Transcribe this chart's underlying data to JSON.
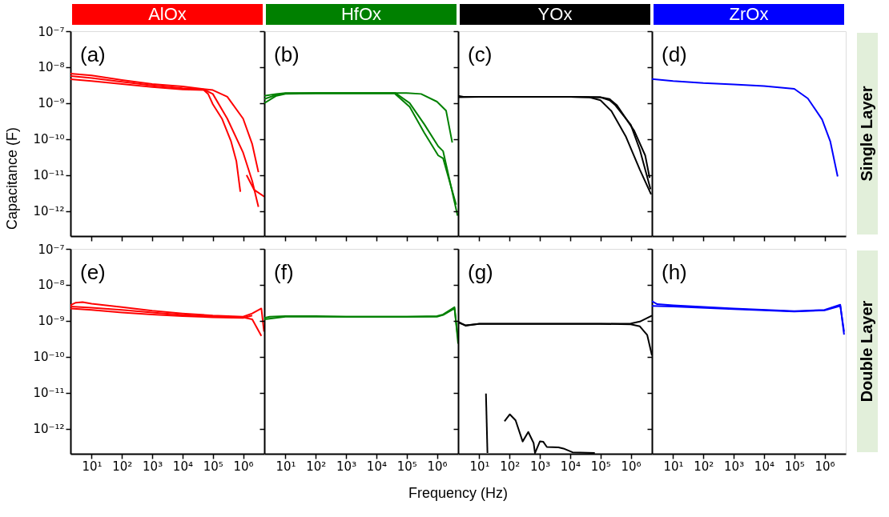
{
  "chart_data": [
    {
      "type": "line",
      "title": "AlOx",
      "ylabel": "Capacitance (F)",
      "annotations": [
        "(a)"
      ],
      "log": "xy",
      "tick_labels": "y",
      "grid": false,
      "xlim": [
        2,
        5000000
      ],
      "ylim": [
        2e-13,
        1e-07
      ],
      "xticks": [
        {
          "value": 10,
          "label": null
        },
        {
          "value": 100,
          "label": null
        },
        {
          "value": 1000,
          "label": null
        },
        {
          "value": 10000,
          "label": null
        },
        {
          "value": 100000,
          "label": null
        },
        {
          "value": 1000000,
          "label": null
        }
      ],
      "yticks": [
        {
          "value": 1e-07,
          "label": "10⁻⁷"
        },
        {
          "value": 1e-08,
          "label": "10⁻⁸"
        },
        {
          "value": 1e-09,
          "label": "10⁻⁹"
        },
        {
          "value": 1e-10,
          "label": "10⁻¹⁰"
        },
        {
          "value": 1e-11,
          "label": "10⁻¹¹"
        },
        {
          "value": 1e-12,
          "label": "10⁻¹²"
        }
      ],
      "series": [
        {
          "color": "#ff0000",
          "x": [
            2,
            10,
            100,
            1000,
            10000,
            100000,
            300000,
            1000000,
            2000000,
            3200000
          ],
          "values": [
            6.6e-09,
            5.9e-09,
            4.4e-09,
            3.4e-09,
            2.9e-09,
            2.3e-09,
            1.5e-09,
            3.7e-10,
            7.2e-11,
            1.2e-11
          ]
        },
        {
          "color": "#ff0000",
          "x": [
            2,
            10,
            100,
            1000,
            10000,
            50000,
            100000,
            300000,
            1000000,
            2000000,
            3200000
          ],
          "values": [
            5.7e-09,
            5e-09,
            3.9e-09,
            3.1e-09,
            2.6e-09,
            2.4e-09,
            1.8e-09,
            3.7e-10,
            4.2e-11,
            6.8e-12,
            1.3e-12
          ]
        },
        {
          "color": "#ff0000",
          "x": [
            2,
            10,
            100,
            1000,
            10000,
            50000,
            70000,
            100000,
            200000,
            400000,
            600000,
            810000
          ],
          "values": [
            4.6e-09,
            4.1e-09,
            3.4e-09,
            2.8e-09,
            2.4e-09,
            2.3e-09,
            1.8e-09,
            9.3e-10,
            3.7e-10,
            8.6e-11,
            2.4e-11,
            3.4e-12
          ]
        },
        {
          "color": "#ff0000",
          "x": [
            1300000,
            2300000,
            5000000
          ],
          "values": [
            1e-11,
            3.9e-12,
            2.5e-12
          ]
        }
      ]
    },
    {
      "type": "line",
      "title": "HfOx",
      "annotations": [
        "(b)"
      ],
      "log": "xy",
      "tick_labels": false,
      "grid": false,
      "xlim": [
        2,
        5000000
      ],
      "ylim": [
        2e-13,
        1e-07
      ],
      "xticks": [
        {
          "value": 10,
          "label": null
        },
        {
          "value": 100,
          "label": null
        },
        {
          "value": 1000,
          "label": null
        },
        {
          "value": 10000,
          "label": null
        },
        {
          "value": 100000,
          "label": null
        },
        {
          "value": 1000000,
          "label": null
        }
      ],
      "yticks": [
        {
          "value": 1e-07,
          "label": null
        },
        {
          "value": 1e-08,
          "label": null
        },
        {
          "value": 1e-09,
          "label": null
        },
        {
          "value": 1e-10,
          "label": null
        },
        {
          "value": 1e-11,
          "label": null
        },
        {
          "value": 1e-12,
          "label": null
        }
      ],
      "series": [
        {
          "color": "#008000",
          "x": [
            2,
            5,
            10,
            100,
            1000,
            10000,
            100000,
            300000,
            1000000,
            2000000,
            3200000
          ],
          "values": [
            1.6e-09,
            1.8e-09,
            1.9e-09,
            1.9e-09,
            1.9e-09,
            1.9e-09,
            1.9e-09,
            1.8e-09,
            1.1e-09,
            6.2e-10,
            8e-11
          ]
        },
        {
          "color": "#008000",
          "x": [
            2,
            5,
            10,
            100,
            1000,
            10000,
            43000,
            126000,
            380000,
            1100000,
            1600000,
            4800000
          ],
          "values": [
            1.3e-09,
            1.7e-09,
            1.85e-09,
            1.9e-09,
            1.9e-09,
            1.9e-09,
            1.9e-09,
            1e-09,
            2.6e-10,
            6.3e-11,
            4.6e-11,
            7.4e-13
          ]
        },
        {
          "color": "#008000",
          "x": [
            2,
            5,
            10,
            100,
            1000,
            10000,
            40000,
            126000,
            380000,
            1100000,
            1600000,
            4300000
          ],
          "values": [
            1e-09,
            1.6e-09,
            1.8e-09,
            1.85e-09,
            1.85e-09,
            1.85e-09,
            1.85e-09,
            7.9e-10,
            1.5e-10,
            3.5e-11,
            2.9e-11,
            1.5e-12
          ]
        }
      ]
    },
    {
      "type": "line",
      "title": "YOx",
      "annotations": [
        "(c)"
      ],
      "log": "xy",
      "tick_labels": false,
      "grid": false,
      "xlim": [
        2,
        5000000
      ],
      "ylim": [
        2e-13,
        1e-07
      ],
      "xticks": [
        {
          "value": 10,
          "label": null
        },
        {
          "value": 100,
          "label": null
        },
        {
          "value": 1000,
          "label": null
        },
        {
          "value": 10000,
          "label": null
        },
        {
          "value": 100000,
          "label": null
        },
        {
          "value": 1000000,
          "label": null
        }
      ],
      "yticks": [
        {
          "value": 1e-07,
          "label": null
        },
        {
          "value": 1e-08,
          "label": null
        },
        {
          "value": 1e-09,
          "label": null
        },
        {
          "value": 1e-10,
          "label": null
        },
        {
          "value": 1e-11,
          "label": null
        },
        {
          "value": 1e-12,
          "label": null
        }
      ],
      "series": [
        {
          "color": "#000000",
          "x": [
            2,
            3,
            10,
            100,
            1000,
            10000,
            43000,
            100000,
            230000,
            680000,
            2000000,
            4700000
          ],
          "values": [
            1.6e-09,
            1.5e-09,
            1.5e-09,
            1.5e-09,
            1.5e-09,
            1.5e-09,
            1.45e-09,
            1.2e-09,
            6e-10,
            1.2e-10,
            1.4e-11,
            2.9e-12
          ]
        },
        {
          "color": "#000000",
          "x": [
            2,
            10,
            100,
            1000,
            10000,
            100000,
            200000,
            350000,
            1300000,
            3000000,
            4200000
          ],
          "values": [
            1.5e-09,
            1.5e-09,
            1.5e-09,
            1.5e-09,
            1.5e-09,
            1.45e-09,
            1.3e-09,
            8.7e-10,
            1.7e-10,
            3.5e-11,
            8.3e-12
          ]
        },
        {
          "color": "#000000",
          "x": [
            2,
            10,
            100,
            1000,
            10000,
            100000,
            200000,
            300000,
            1000000,
            2000000,
            4500000
          ],
          "values": [
            1.45e-09,
            1.5e-09,
            1.5e-09,
            1.5e-09,
            1.5e-09,
            1.45e-09,
            1.2e-09,
            9e-10,
            2.5e-10,
            5e-11,
            4e-12
          ]
        }
      ]
    },
    {
      "type": "line",
      "title": "ZrOx",
      "annotations": [
        "(d)",
        "Single Layer"
      ],
      "log": "xy",
      "tick_labels": false,
      "grid": false,
      "xlim": [
        2,
        5000000
      ],
      "ylim": [
        2e-13,
        1e-07
      ],
      "xticks": [
        {
          "value": 10,
          "label": null
        },
        {
          "value": 100,
          "label": null
        },
        {
          "value": 1000,
          "label": null
        },
        {
          "value": 10000,
          "label": null
        },
        {
          "value": 100000,
          "label": null
        },
        {
          "value": 1000000,
          "label": null
        }
      ],
      "yticks": [
        {
          "value": 1e-07,
          "label": null
        },
        {
          "value": 1e-08,
          "label": null
        },
        {
          "value": 1e-09,
          "label": null
        },
        {
          "value": 1e-10,
          "label": null
        },
        {
          "value": 1e-11,
          "label": null
        },
        {
          "value": 1e-12,
          "label": null
        }
      ],
      "series": [
        {
          "color": "#0000ff",
          "x": [
            2,
            10,
            100,
            1000,
            10000,
            100000,
            280000,
            830000,
            1550000,
            2700000
          ],
          "values": [
            4.7e-09,
            4.1e-09,
            3.6e-09,
            3.3e-09,
            3e-09,
            2.5e-09,
            1.35e-09,
            3.5e-10,
            8.5e-11,
            9.1e-12
          ]
        }
      ]
    },
    {
      "type": "line",
      "annotations": [
        "(e)"
      ],
      "log": "xy",
      "grid": false,
      "xlim": [
        2,
        5000000
      ],
      "ylim": [
        2e-13,
        1e-07
      ],
      "xticks": [
        {
          "value": 10,
          "label": "10¹"
        },
        {
          "value": 100,
          "label": "10²"
        },
        {
          "value": 1000,
          "label": "10³"
        },
        {
          "value": 10000,
          "label": "10⁴"
        },
        {
          "value": 100000,
          "label": "10⁵"
        },
        {
          "value": 1000000,
          "label": "10⁶"
        }
      ],
      "yticks": [
        {
          "value": 1e-07,
          "label": "10⁻⁷"
        },
        {
          "value": 1e-08,
          "label": "10⁻⁸"
        },
        {
          "value": 1e-09,
          "label": "10⁻⁹"
        },
        {
          "value": 1e-10,
          "label": "10⁻¹⁰"
        },
        {
          "value": 1e-11,
          "label": "10⁻¹¹"
        },
        {
          "value": 1e-12,
          "label": "10⁻¹²"
        }
      ],
      "series": [
        {
          "color": "#ff0000",
          "x": [
            2,
            3,
            5,
            10,
            100,
            1000,
            10000,
            100000,
            1000000,
            2000000,
            4000000,
            4900000
          ],
          "values": [
            2.7e-09,
            3.2e-09,
            3.3e-09,
            3e-09,
            2.4e-09,
            1.9e-09,
            1.6e-09,
            1.4e-09,
            1.3e-09,
            1.6e-09,
            2.2e-09,
            5e-10
          ]
        },
        {
          "color": "#ff0000",
          "x": [
            2,
            10,
            100,
            1000,
            10000,
            100000,
            1000000,
            2000000,
            4000000
          ],
          "values": [
            2.5e-09,
            2.3e-09,
            2e-09,
            1.7e-09,
            1.45e-09,
            1.3e-09,
            1.25e-09,
            1.1e-09,
            3.8e-10
          ]
        },
        {
          "color": "#ff0000",
          "x": [
            2,
            10,
            100,
            1000,
            10000,
            100000,
            1000000,
            2000000
          ],
          "values": [
            2.2e-09,
            2e-09,
            1.7e-09,
            1.5e-09,
            1.35e-09,
            1.25e-09,
            1.2e-09,
            1.4e-09
          ]
        }
      ]
    },
    {
      "type": "line",
      "xlabel": "Frequency (Hz)",
      "annotations": [
        "(f)"
      ],
      "log": "xy",
      "tick_labels": "x",
      "grid": false,
      "xlim": [
        2,
        5000000
      ],
      "ylim": [
        2e-13,
        1e-07
      ],
      "xticks": [
        {
          "value": 10,
          "label": "10¹"
        },
        {
          "value": 100,
          "label": "10²"
        },
        {
          "value": 1000,
          "label": "10³"
        },
        {
          "value": 10000,
          "label": "10⁴"
        },
        {
          "value": 100000,
          "label": "10⁵"
        },
        {
          "value": 1000000,
          "label": "10⁶"
        }
      ],
      "yticks": [
        {
          "value": 1e-07,
          "label": null
        },
        {
          "value": 1e-08,
          "label": null
        },
        {
          "value": 1e-09,
          "label": null
        },
        {
          "value": 1e-10,
          "label": null
        },
        {
          "value": 1e-11,
          "label": null
        },
        {
          "value": 1e-12,
          "label": null
        }
      ],
      "series": [
        {
          "color": "#008000",
          "x": [
            2,
            3,
            10,
            100,
            1000,
            10000,
            100000,
            1000000,
            1600000,
            3800000,
            5000000
          ],
          "values": [
            1.2e-09,
            1.3e-09,
            1.35e-09,
            1.35e-09,
            1.3e-09,
            1.3e-09,
            1.3e-09,
            1.35e-09,
            1.5e-09,
            2.4e-09,
            2.3e-10
          ]
        },
        {
          "color": "#008000",
          "x": [
            2,
            10,
            100,
            1000,
            10000,
            100000,
            1000000,
            1600000,
            3800000,
            4800000
          ],
          "values": [
            1.1e-09,
            1.3e-09,
            1.3e-09,
            1.3e-09,
            1.3e-09,
            1.3e-09,
            1.3e-09,
            1.45e-09,
            2.2e-09,
            4e-10
          ]
        }
      ]
    },
    {
      "type": "line",
      "annotations": [
        "(g)"
      ],
      "log": "xy",
      "tick_labels": "x",
      "grid": false,
      "xlim": [
        2,
        5000000
      ],
      "ylim": [
        2e-13,
        1e-07
      ],
      "xticks": [
        {
          "value": 10,
          "label": "10¹"
        },
        {
          "value": 100,
          "label": "10²"
        },
        {
          "value": 1000,
          "label": "10³"
        },
        {
          "value": 10000,
          "label": "10⁴"
        },
        {
          "value": 100000,
          "label": "10⁵"
        },
        {
          "value": 1000000,
          "label": "10⁶"
        }
      ],
      "yticks": [
        {
          "value": 1e-07,
          "label": null
        },
        {
          "value": 1e-08,
          "label": null
        },
        {
          "value": 1e-09,
          "label": null
        },
        {
          "value": 1e-10,
          "label": null
        },
        {
          "value": 1e-11,
          "label": null
        },
        {
          "value": 1e-12,
          "label": null
        }
      ],
      "series": [
        {
          "color": "#000000",
          "x": [
            2,
            3.5,
            10,
            100,
            1000,
            10000,
            100000,
            1000000,
            2000000,
            5000000
          ],
          "values": [
            9.5e-10,
            7.3e-10,
            8.3e-10,
            8.3e-10,
            8.3e-10,
            8.3e-10,
            8.3e-10,
            8.4e-10,
            9.5e-10,
            1.4e-09
          ]
        },
        {
          "color": "#000000",
          "x": [
            2,
            3.5,
            10,
            100,
            1000,
            10000,
            100000,
            1000000,
            2000000,
            3500000,
            5000000
          ],
          "values": [
            9e-10,
            7.5e-10,
            8.2e-10,
            8.2e-10,
            8.2e-10,
            8.2e-10,
            8.2e-10,
            8e-10,
            7e-10,
            4e-10,
            1.1e-10
          ]
        },
        {
          "color": "#000000",
          "x": [
            16.6,
            18.6
          ],
          "values": [
            9.5e-12,
            2.1e-13
          ]
        },
        {
          "color": "#000000",
          "x": [
            68,
            102,
            158,
            270,
            414,
            620,
            690,
            1000,
            1300,
            1700,
            4100,
            6000,
            12000,
            65000
          ],
          "values": [
            1.6e-12,
            2.5e-12,
            1.7e-12,
            4.4e-13,
            8.1e-13,
            4e-13,
            2.1e-13,
            4.4e-13,
            4.3e-13,
            3.1e-13,
            3e-13,
            2.8e-13,
            2.2e-13,
            2.1e-13
          ]
        }
      ]
    },
    {
      "type": "line",
      "annotations": [
        "(h)",
        "Double Layer"
      ],
      "log": "xy",
      "tick_labels": "x",
      "grid": false,
      "xlim": [
        2,
        5000000
      ],
      "ylim": [
        2e-13,
        1e-07
      ],
      "xticks": [
        {
          "value": 10,
          "label": "10¹"
        },
        {
          "value": 100,
          "label": "10²"
        },
        {
          "value": 1000,
          "label": "10³"
        },
        {
          "value": 10000,
          "label": "10⁴"
        },
        {
          "value": 100000,
          "label": "10⁵"
        },
        {
          "value": 1000000,
          "label": "10⁶"
        }
      ],
      "yticks": [
        {
          "value": 1e-07,
          "label": null
        },
        {
          "value": 1e-08,
          "label": null
        },
        {
          "value": 1e-09,
          "label": null
        },
        {
          "value": 1e-10,
          "label": null
        },
        {
          "value": 1e-11,
          "label": null
        },
        {
          "value": 1e-12,
          "label": null
        }
      ],
      "series": [
        {
          "color": "#0000ff",
          "x": [
            2,
            3,
            10,
            1000,
            100000,
            1000000,
            3300000,
            4400000
          ],
          "values": [
            3.5e-09,
            2.9e-09,
            2.7e-09,
            2.2e-09,
            1.85e-09,
            2e-09,
            2.8e-09,
            4.1e-10
          ]
        },
        {
          "color": "#0000ff",
          "x": [
            2,
            10,
            1000,
            100000,
            1000000,
            3300000,
            4400000
          ],
          "values": [
            2.6e-09,
            2.5e-09,
            2.1e-09,
            1.8e-09,
            1.95e-09,
            2.6e-09,
            5e-10
          ]
        }
      ]
    }
  ]
}
